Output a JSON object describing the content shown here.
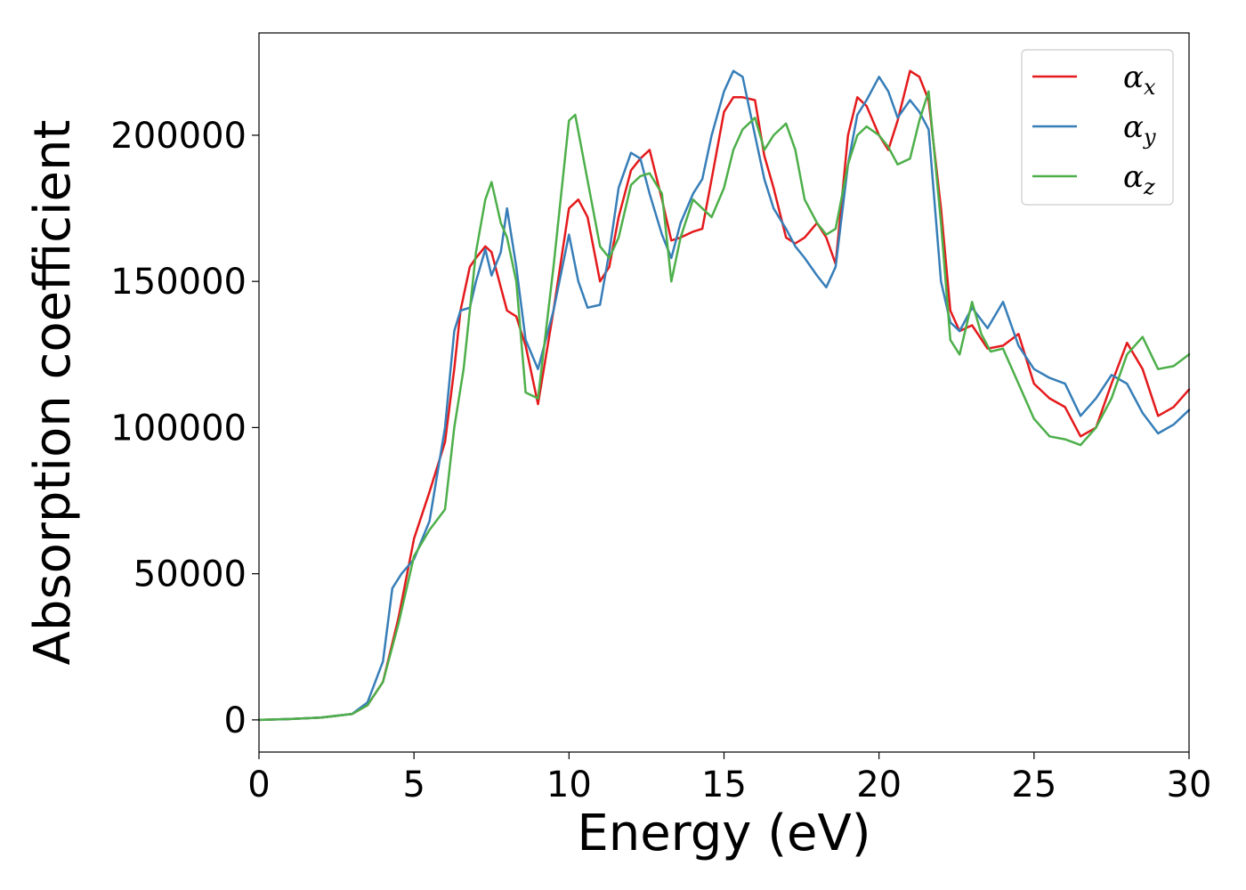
{
  "chart_data": {
    "type": "line",
    "xlabel": "Energy (eV)",
    "ylabel": "Absorption coefficient",
    "xlim": [
      0,
      30
    ],
    "ylim": [
      -11000,
      235000
    ],
    "xticks": [
      0,
      5,
      10,
      15,
      20,
      25,
      30
    ],
    "yticks": [
      0,
      50000,
      100000,
      150000,
      200000
    ],
    "grid": false,
    "legend_position": "top-right",
    "series": [
      {
        "name": "αx",
        "symbol": "α",
        "subscript": "x",
        "color": "#e41a1c",
        "x": [
          0,
          1,
          2,
          3,
          3.5,
          4,
          4.5,
          5,
          5.5,
          6,
          6.3,
          6.5,
          6.8,
          7,
          7.3,
          7.5,
          7.8,
          8,
          8.3,
          8.6,
          9,
          9.5,
          10,
          10.3,
          10.6,
          11,
          11.3,
          11.6,
          12,
          12.3,
          12.6,
          13,
          13.3,
          13.6,
          14,
          14.3,
          14.6,
          15,
          15.3,
          15.6,
          16,
          16.3,
          16.6,
          17,
          17.3,
          17.6,
          18,
          18.3,
          18.6,
          19,
          19.3,
          19.6,
          20,
          20.3,
          20.6,
          21,
          21.3,
          21.6,
          22,
          22.3,
          22.6,
          23,
          23.5,
          24,
          24.5,
          25,
          25.5,
          26,
          26.5,
          27,
          27.5,
          28,
          28.5,
          29,
          29.5,
          30
        ],
        "y": [
          0,
          300,
          800,
          2000,
          5000,
          13000,
          35000,
          62000,
          78000,
          95000,
          120000,
          140000,
          155000,
          158000,
          162000,
          160000,
          148000,
          140000,
          138000,
          128000,
          108000,
          140000,
          175000,
          178000,
          172000,
          150000,
          155000,
          172000,
          188000,
          192000,
          195000,
          178000,
          164000,
          165000,
          167000,
          168000,
          185000,
          208000,
          213000,
          213000,
          212000,
          193000,
          182000,
          165000,
          163000,
          165000,
          170000,
          165000,
          156000,
          200000,
          213000,
          210000,
          200000,
          195000,
          205000,
          222000,
          220000,
          212000,
          175000,
          140000,
          133000,
          135000,
          127000,
          128000,
          132000,
          115000,
          110000,
          107000,
          97000,
          100000,
          115000,
          129000,
          120000,
          104000,
          107000,
          113000
        ]
      },
      {
        "name": "αy",
        "symbol": "α",
        "subscript": "y",
        "color": "#377eb8",
        "x": [
          0,
          1,
          2,
          3,
          3.5,
          4,
          4.3,
          4.6,
          5,
          5.5,
          6,
          6.3,
          6.5,
          6.8,
          7,
          7.3,
          7.5,
          7.8,
          8,
          8.3,
          8.6,
          9,
          9.5,
          10,
          10.3,
          10.6,
          11,
          11.3,
          11.6,
          12,
          12.3,
          12.6,
          13,
          13.3,
          13.6,
          14,
          14.3,
          14.6,
          15,
          15.3,
          15.6,
          16,
          16.3,
          16.6,
          17,
          17.3,
          17.6,
          18,
          18.3,
          18.6,
          19,
          19.3,
          19.6,
          20,
          20.3,
          20.6,
          21,
          21.3,
          21.6,
          22,
          22.3,
          22.6,
          23,
          23.5,
          24,
          24.5,
          25,
          25.5,
          26,
          26.5,
          27,
          27.5,
          28,
          28.5,
          29,
          29.5,
          30
        ],
        "y": [
          0,
          300,
          800,
          2000,
          6000,
          20000,
          45000,
          50000,
          55000,
          68000,
          100000,
          133000,
          140000,
          141000,
          150000,
          161000,
          152000,
          160000,
          175000,
          155000,
          130000,
          120000,
          140000,
          166000,
          150000,
          141000,
          142000,
          160000,
          182000,
          194000,
          192000,
          180000,
          166000,
          158000,
          170000,
          180000,
          185000,
          200000,
          215000,
          222000,
          220000,
          200000,
          185000,
          175000,
          168000,
          162000,
          158000,
          152000,
          148000,
          155000,
          190000,
          207000,
          212000,
          220000,
          215000,
          206000,
          212000,
          208000,
          202000,
          150000,
          136000,
          133000,
          141000,
          134000,
          143000,
          128000,
          120000,
          117000,
          115000,
          104000,
          110000,
          118000,
          115000,
          105000,
          98000,
          101000,
          106000
        ]
      },
      {
        "name": "αz",
        "symbol": "α",
        "subscript": "z",
        "color": "#4daf4a",
        "x": [
          0,
          1,
          2,
          3,
          3.5,
          4,
          4.5,
          5,
          5.5,
          6,
          6.3,
          6.6,
          7,
          7.3,
          7.5,
          7.8,
          8,
          8.3,
          8.6,
          9,
          9.5,
          10,
          10.2,
          10.5,
          11,
          11.3,
          11.6,
          12,
          12.3,
          12.6,
          13,
          13.3,
          13.6,
          14,
          14.3,
          14.6,
          15,
          15.3,
          15.6,
          16,
          16.3,
          16.6,
          17,
          17.3,
          17.6,
          18,
          18.3,
          18.6,
          19,
          19.3,
          19.6,
          20,
          20.3,
          20.6,
          21,
          21.3,
          21.6,
          22,
          22.3,
          22.6,
          23,
          23.3,
          23.6,
          24,
          24.5,
          25,
          25.5,
          26,
          26.5,
          27,
          27.5,
          28,
          28.5,
          29,
          29.5,
          30
        ],
        "y": [
          0,
          300,
          800,
          2000,
          5000,
          13000,
          33000,
          56000,
          65000,
          72000,
          100000,
          120000,
          160000,
          178000,
          184000,
          170000,
          165000,
          150000,
          112000,
          110000,
          155000,
          205000,
          207000,
          190000,
          162000,
          158000,
          165000,
          183000,
          186000,
          187000,
          180000,
          150000,
          165000,
          178000,
          175000,
          172000,
          182000,
          195000,
          202000,
          206000,
          195000,
          200000,
          204000,
          195000,
          178000,
          170000,
          166000,
          168000,
          190000,
          200000,
          203000,
          200000,
          196000,
          190000,
          192000,
          205000,
          215000,
          170000,
          130000,
          125000,
          143000,
          132000,
          126000,
          127000,
          115000,
          103000,
          97000,
          96000,
          94000,
          100000,
          110000,
          125000,
          131000,
          120000,
          121000,
          125000
        ]
      }
    ]
  }
}
